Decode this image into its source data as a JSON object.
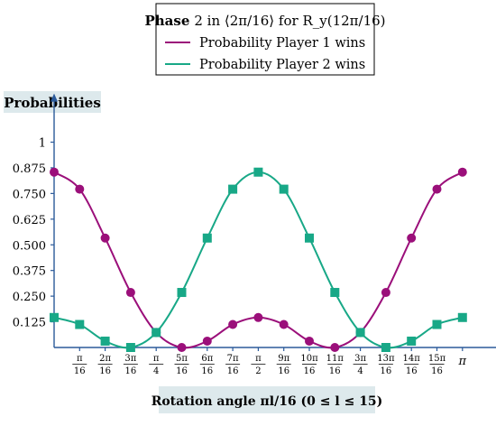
{
  "legend": {
    "title_bold": "Phase",
    "title_rest": "2 in ⟨2π/16⟩ for R_y(12π/16)"
  },
  "colors": {
    "player1": "#9b0f7a",
    "player2": "#18a887",
    "axis": "#2b5a9a",
    "label_bg": "#dde9ec"
  },
  "chart_data": {
    "type": "line",
    "ylabel": "Probabilities",
    "xlabel": "Rotation angle πl/16 (0 ≤ l ≤ 15)",
    "x": [
      0,
      1,
      2,
      3,
      4,
      5,
      6,
      7,
      8,
      9,
      10,
      11,
      12,
      13,
      14,
      15,
      16
    ],
    "x_tick_labels": [
      {
        "x": 1,
        "num": "π",
        "den": "16"
      },
      {
        "x": 2,
        "num": "2π",
        "den": "16"
      },
      {
        "x": 3,
        "num": "3π",
        "den": "16"
      },
      {
        "x": 4,
        "num": "π",
        "den": "4"
      },
      {
        "x": 5,
        "num": "5π",
        "den": "16"
      },
      {
        "x": 6,
        "num": "6π",
        "den": "16"
      },
      {
        "x": 7,
        "num": "7π",
        "den": "16"
      },
      {
        "x": 8,
        "num": "π",
        "den": "2"
      },
      {
        "x": 9,
        "num": "9π",
        "den": "16"
      },
      {
        "x": 10,
        "num": "10π",
        "den": "16"
      },
      {
        "x": 11,
        "num": "11π",
        "den": "16"
      },
      {
        "x": 12,
        "num": "3π",
        "den": "4"
      },
      {
        "x": 13,
        "num": "13π",
        "den": "16"
      },
      {
        "x": 14,
        "num": "14π",
        "den": "16"
      },
      {
        "x": 15,
        "num": "15π",
        "den": "16"
      },
      {
        "x": 16,
        "text": "π"
      }
    ],
    "y_ticks": [
      0.125,
      0.25,
      0.375,
      0.5,
      0.625,
      0.75,
      0.875,
      1
    ],
    "y_tick_labels": [
      "0.125",
      "0.250",
      "0.375",
      "0.500",
      "0.625",
      "0.750",
      "0.875",
      "1"
    ],
    "xlim": [
      0,
      17.5
    ],
    "ylim": [
      0,
      1.25
    ],
    "grid": false,
    "legend_position": "top-center",
    "series": [
      {
        "name": "Probability Player 1 wins",
        "marker": "circle",
        "values": [
          0.854,
          0.771,
          0.533,
          0.268,
          0.073,
          0.0,
          0.031,
          0.112,
          0.146,
          0.112,
          0.031,
          0.0,
          0.073,
          0.268,
          0.533,
          0.771,
          0.854
        ]
      },
      {
        "name": "Probability Player 2 wins",
        "marker": "square",
        "values": [
          0.146,
          0.112,
          0.031,
          0.0,
          0.073,
          0.268,
          0.533,
          0.771,
          0.854,
          0.771,
          0.533,
          0.268,
          0.073,
          0.0,
          0.031,
          0.112,
          0.146
        ]
      }
    ]
  }
}
